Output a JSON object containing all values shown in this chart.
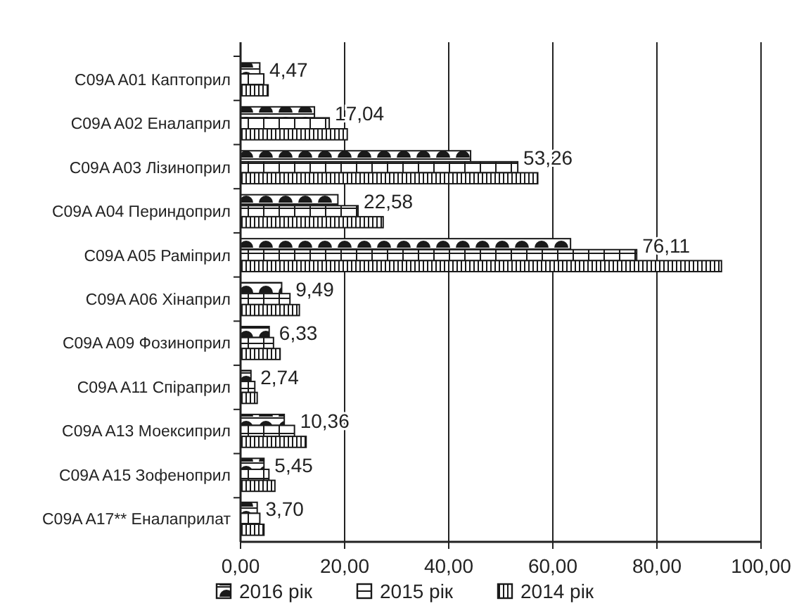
{
  "chart_data": {
    "type": "bar",
    "orientation": "horizontal",
    "categories": [
      "C09A A01 Каптоприл",
      "C09A A02 Еналаприл",
      "C09A A03 Лізиноприл",
      "C09A A04 Периндоприл",
      "C09A A05 Раміприл",
      "C09A A06 Хінаприл",
      "C09A A09 Фозиноприл",
      "C09A A11 Спіраприл",
      "C09A A13 Моексиприл",
      "C09A A15 Зофеноприл",
      "C09A A17** Еналаприлат"
    ],
    "series": [
      {
        "name": "2016 рік",
        "color": "#1a1a1a",
        "values": [
          3.7,
          14.2,
          44.2,
          18.7,
          63.4,
          7.9,
          5.5,
          2.0,
          8.4,
          4.5,
          3.2
        ]
      },
      {
        "name": "2015 рік",
        "color": "#1a1a1a",
        "values": [
          4.47,
          17.04,
          53.26,
          22.58,
          76.11,
          9.49,
          6.33,
          2.74,
          10.36,
          5.45,
          3.7
        ],
        "value_labels": [
          "4,47",
          "17,04",
          "53,26",
          "22,58",
          "76,11",
          "9,49",
          "6,33",
          "2,74",
          "10,36",
          "5,45",
          "3,70"
        ]
      },
      {
        "name": "2014 рік",
        "color": "#1a1a1a",
        "values": [
          5.3,
          20.5,
          57.1,
          27.4,
          92.4,
          11.3,
          7.6,
          3.2,
          12.6,
          6.6,
          4.5
        ]
      }
    ],
    "xlim": [
      0,
      100
    ],
    "xticks": [
      {
        "value": 0,
        "label": "0,00"
      },
      {
        "value": 20,
        "label": "20,00"
      },
      {
        "value": 40,
        "label": "40,00"
      },
      {
        "value": 60,
        "label": "60,00"
      },
      {
        "value": 80,
        "label": "80,00"
      },
      {
        "value": 100,
        "label": "100,00"
      }
    ],
    "grid": "x",
    "legend": "bottom"
  }
}
